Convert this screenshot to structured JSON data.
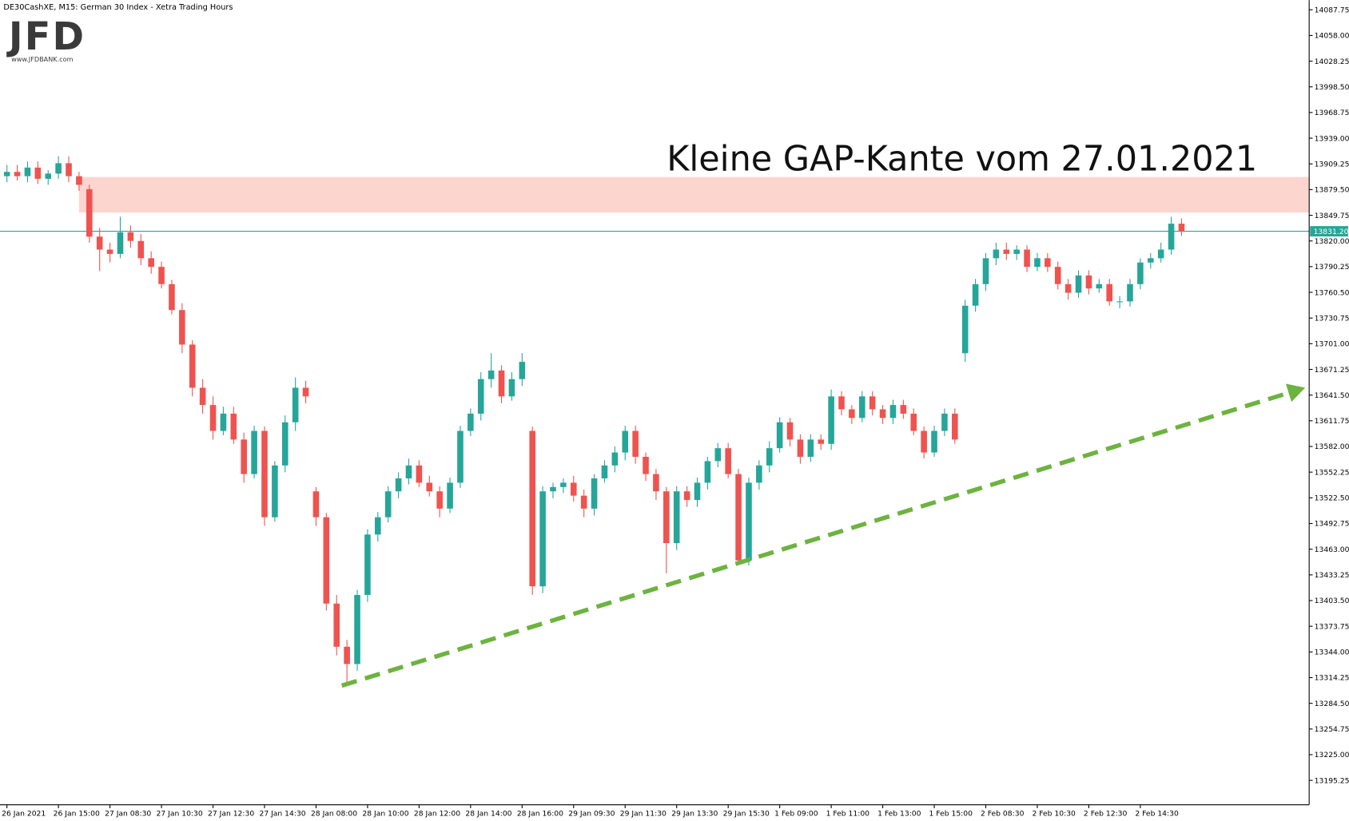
{
  "chart_data": {
    "type": "candlestick",
    "title": "DE30CashXE, M15:  German 30 Index  - Xetra Trading Hours",
    "logo": "JFD",
    "logo_url": "www.JFDBANK.com",
    "annotation": "Kleine GAP-Kante vom 27.01.2021",
    "up_color": "#26a69a",
    "down_color": "#ef5350",
    "categories": [
      "26 Jan 2021",
      null,
      null,
      null,
      null,
      "26 Jan 15:00",
      null,
      null,
      null,
      null,
      "27 Jan 08:30",
      null,
      null,
      null,
      null,
      "27 Jan 10:30",
      null,
      null,
      null,
      null,
      "27 Jan 12:30",
      null,
      null,
      null,
      null,
      "27 Jan 14:30",
      null,
      null,
      null,
      null,
      "28 Jan 08:00",
      null,
      null,
      null,
      null,
      "28 Jan 10:00",
      null,
      null,
      null,
      null,
      "28 Jan 12:00",
      null,
      null,
      null,
      null,
      "28 Jan 14:00",
      null,
      null,
      null,
      null,
      "28 Jan 16:00",
      null,
      null,
      null,
      null,
      "29 Jan 09:30",
      null,
      null,
      null,
      null,
      "29 Jan 11:30",
      null,
      null,
      null,
      null,
      "29 Jan 13:30",
      null,
      null,
      null,
      null,
      "29 Jan 15:30",
      null,
      null,
      null,
      null,
      "1 Feb 09:00",
      null,
      null,
      null,
      null,
      "1 Feb 11:00",
      null,
      null,
      null,
      null,
      "1 Feb 13:00",
      null,
      null,
      null,
      null,
      "1 Feb 15:00",
      null,
      null,
      null,
      null,
      "2 Feb 08:30",
      null,
      null,
      null,
      null,
      "2 Feb 10:30",
      null,
      null,
      null,
      null,
      "2 Feb 12:30",
      null,
      null,
      null,
      null,
      "2 Feb 14:30",
      null,
      null,
      null,
      null
    ],
    "open": [
      13895,
      13900,
      13895,
      13905,
      13892,
      13898,
      13910,
      13895,
      13880,
      13825,
      13810,
      13805,
      13830,
      13820,
      13800,
      13790,
      13770,
      13740,
      13700,
      13650,
      13630,
      13600,
      13620,
      13590,
      13550,
      13600,
      13500,
      13560,
      13610,
      13650,
      13530,
      13500,
      13400,
      13350,
      13330,
      13410,
      13480,
      13500,
      13530,
      13545,
      13560,
      13540,
      13530,
      13510,
      13540,
      13600,
      13620,
      13660,
      13670,
      13640,
      13660,
      13600,
      13420,
      13530,
      13535,
      13540,
      13525,
      13510,
      13545,
      13560,
      13575,
      13600,
      13570,
      13550,
      13530,
      13470,
      13530,
      13520,
      13540,
      13565,
      13580,
      13550,
      13450,
      13540,
      13560,
      13580,
      13610,
      13590,
      13570,
      13590,
      13585,
      13640,
      13625,
      13615,
      13640,
      13625,
      13615,
      13630,
      13620,
      13600,
      13575,
      13600,
      13620,
      13690,
      13745,
      13770,
      13800,
      13810,
      13805,
      13810,
      13790,
      13800,
      13790,
      13770,
      13760,
      13780,
      13765,
      13770,
      13750,
      13750,
      13770,
      13795,
      13800,
      13810,
      13840
    ],
    "high": [
      13908,
      13908,
      13912,
      13912,
      13902,
      13918,
      13918,
      13900,
      13885,
      13835,
      13818,
      13848,
      13838,
      13828,
      13808,
      13796,
      13775,
      13748,
      13705,
      13660,
      13640,
      13628,
      13628,
      13598,
      13606,
      13605,
      13565,
      13618,
      13662,
      13658,
      13535,
      13505,
      13410,
      13358,
      13416,
      13486,
      13506,
      13536,
      13552,
      13568,
      13566,
      13548,
      13536,
      13546,
      13606,
      13626,
      13668,
      13690,
      13676,
      13668,
      13690,
      13605,
      13536,
      13540,
      13545,
      13548,
      13532,
      13550,
      13566,
      13582,
      13606,
      13606,
      13575,
      13556,
      13535,
      13536,
      13536,
      13546,
      13570,
      13586,
      13586,
      13556,
      13546,
      13566,
      13588,
      13616,
      13615,
      13596,
      13596,
      13596,
      13648,
      13646,
      13630,
      13646,
      13646,
      13630,
      13636,
      13636,
      13626,
      13605,
      13606,
      13626,
      13626,
      13752,
      13776,
      13806,
      13818,
      13818,
      13815,
      13815,
      13806,
      13806,
      13796,
      13776,
      13786,
      13786,
      13776,
      13776,
      13756,
      13776,
      13800,
      13806,
      13818,
      13848,
      13846
    ],
    "low": [
      13888,
      13890,
      13888,
      13886,
      13885,
      13892,
      13888,
      13878,
      13818,
      13785,
      13795,
      13800,
      13812,
      13792,
      13782,
      13765,
      13735,
      13690,
      13640,
      13620,
      13590,
      13595,
      13585,
      13540,
      13545,
      13490,
      13495,
      13552,
      13600,
      13632,
      13490,
      13392,
      13340,
      13309,
      13322,
      13402,
      13472,
      13494,
      13522,
      13538,
      13535,
      13524,
      13500,
      13505,
      13534,
      13594,
      13612,
      13650,
      13632,
      13635,
      13652,
      13410,
      13412,
      13522,
      13528,
      13518,
      13500,
      13502,
      13540,
      13552,
      13566,
      13562,
      13542,
      13520,
      13435,
      13462,
      13512,
      13512,
      13532,
      13558,
      13545,
      13445,
      13444,
      13532,
      13552,
      13575,
      13582,
      13562,
      13564,
      13578,
      13578,
      13618,
      13608,
      13610,
      13618,
      13608,
      13608,
      13614,
      13595,
      13568,
      13570,
      13594,
      13585,
      13680,
      13738,
      13762,
      13792,
      13798,
      13798,
      13784,
      13785,
      13784,
      13764,
      13752,
      13754,
      13758,
      13760,
      13745,
      13742,
      13744,
      13764,
      13788,
      13795,
      13804,
      13826
    ],
    "close": [
      13900,
      13895,
      13905,
      13892,
      13898,
      13910,
      13895,
      13885,
      13825,
      13810,
      13805,
      13830,
      13820,
      13800,
      13790,
      13770,
      13740,
      13700,
      13650,
      13630,
      13600,
      13620,
      13590,
      13550,
      13600,
      13500,
      13560,
      13610,
      13650,
      13640,
      13500,
      13400,
      13350,
      13330,
      13410,
      13480,
      13500,
      13530,
      13545,
      13560,
      13540,
      13530,
      13510,
      13540,
      13600,
      13620,
      13660,
      13670,
      13640,
      13660,
      13680,
      13420,
      13530,
      13535,
      13540,
      13525,
      13510,
      13545,
      13560,
      13575,
      13600,
      13570,
      13550,
      13530,
      13470,
      13530,
      13520,
      13540,
      13565,
      13580,
      13550,
      13450,
      13540,
      13560,
      13580,
      13610,
      13590,
      13570,
      13590,
      13585,
      13640,
      13625,
      13615,
      13640,
      13625,
      13615,
      13630,
      13620,
      13600,
      13575,
      13600,
      13620,
      13590,
      13745,
      13770,
      13800,
      13810,
      13805,
      13810,
      13790,
      13800,
      13790,
      13770,
      13760,
      13780,
      13765,
      13770,
      13750,
      13750,
      13770,
      13795,
      13800,
      13810,
      13840,
      13831.2
    ],
    "current_price": 13831.2,
    "current_price_label": "13831.20",
    "current_price_color": "#26a69a",
    "gap_zone": {
      "x_start": 7,
      "y": [
        13853,
        13894
      ],
      "color": "#fdd5cf"
    },
    "trend_line": {
      "x": [
        32.5,
        126
      ],
      "y": [
        13305,
        13650
      ],
      "color": "#6db33f"
    },
    "ylim": [
      13167,
      14099
    ],
    "yticks": [
      {
        "value": 14087.75,
        "label": "14087.75"
      },
      {
        "value": 14058,
        "label": "14058.00"
      },
      {
        "value": 14028.25,
        "label": "14028.25"
      },
      {
        "value": 13998.5,
        "label": "13998.50"
      },
      {
        "value": 13968.75,
        "label": "13968.75"
      },
      {
        "value": 13939,
        "label": "13939.00"
      },
      {
        "value": 13909.25,
        "label": "13909.25"
      },
      {
        "value": 13879.5,
        "label": "13879.50"
      },
      {
        "value": 13849.75,
        "label": "13849.75"
      },
      {
        "value": 13820,
        "label": "13820.00"
      },
      {
        "value": 13790.25,
        "label": "13790.25"
      },
      {
        "value": 13760.5,
        "label": "13760.50"
      },
      {
        "value": 13730.75,
        "label": "13730.75"
      },
      {
        "value": 13701,
        "label": "13701.00"
      },
      {
        "value": 13671.25,
        "label": "13671.25"
      },
      {
        "value": 13641.5,
        "label": "13641.50"
      },
      {
        "value": 13611.75,
        "label": "13611.75"
      },
      {
        "value": 13582,
        "label": "13582.00"
      },
      {
        "value": 13552.25,
        "label": "13552.25"
      },
      {
        "value": 13522.5,
        "label": "13522.50"
      },
      {
        "value": 13492.75,
        "label": "13492.75"
      },
      {
        "value": 13463,
        "label": "13463.00"
      },
      {
        "value": 13433.25,
        "label": "13433.25"
      },
      {
        "value": 13403.5,
        "label": "13403.50"
      },
      {
        "value": 13373.75,
        "label": "13373.75"
      },
      {
        "value": 13344,
        "label": "13344.00"
      },
      {
        "value": 13314.25,
        "label": "13314.25"
      },
      {
        "value": 13284.5,
        "label": "13284.50"
      },
      {
        "value": 13254.75,
        "label": "13254.75"
      },
      {
        "value": 13225,
        "label": "13225.00"
      },
      {
        "value": 13195.25,
        "label": "13195.25"
      }
    ]
  }
}
